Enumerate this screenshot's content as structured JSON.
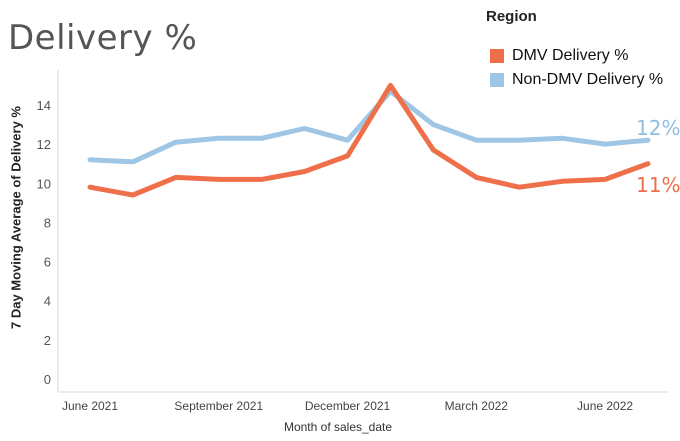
{
  "title": "Delivery %",
  "legend": {
    "title": "Region",
    "items": [
      {
        "label": "DMV Delivery %",
        "color": "#ee6f4a"
      },
      {
        "label": "Non-DMV Delivery %",
        "color": "#9fc6e4"
      }
    ]
  },
  "end_labels": {
    "non_dmv": "12%",
    "dmv": "11%"
  },
  "chart_data": {
    "type": "line",
    "ylabel": "7 Day Moving Average of Delivery %",
    "xlabel": "Month of sales_date",
    "ylim": [
      0,
      15.5
    ],
    "yticks": [
      0,
      2,
      4,
      6,
      8,
      10,
      12,
      14
    ],
    "x": [
      "2021-06",
      "2021-07",
      "2021-08",
      "2021-09",
      "2021-10",
      "2021-11",
      "2021-12",
      "2022-01",
      "2022-02",
      "2022-03",
      "2022-04",
      "2022-05",
      "2022-06",
      "2022-07"
    ],
    "xtick_labels": [
      {
        "x": "2021-06",
        "label": "June 2021"
      },
      {
        "x": "2021-09",
        "label": "September 2021"
      },
      {
        "x": "2021-12",
        "label": "December 2021"
      },
      {
        "x": "2022-03",
        "label": "March 2022"
      },
      {
        "x": "2022-06",
        "label": "June 2022"
      }
    ],
    "grid": false,
    "legend_position": "top-right",
    "series": [
      {
        "name": "Non-DMV Delivery %",
        "color": "#9fc6e4",
        "values": [
          11.2,
          11.1,
          12.1,
          12.3,
          12.3,
          12.8,
          12.2,
          14.7,
          13.0,
          12.2,
          12.2,
          12.3,
          12.0,
          12.2
        ]
      },
      {
        "name": "DMV Delivery %",
        "color": "#ee6f4a",
        "values": [
          9.8,
          9.4,
          10.3,
          10.2,
          10.2,
          10.6,
          11.4,
          15.0,
          11.7,
          10.3,
          9.8,
          10.1,
          10.2,
          11.0
        ]
      }
    ]
  }
}
